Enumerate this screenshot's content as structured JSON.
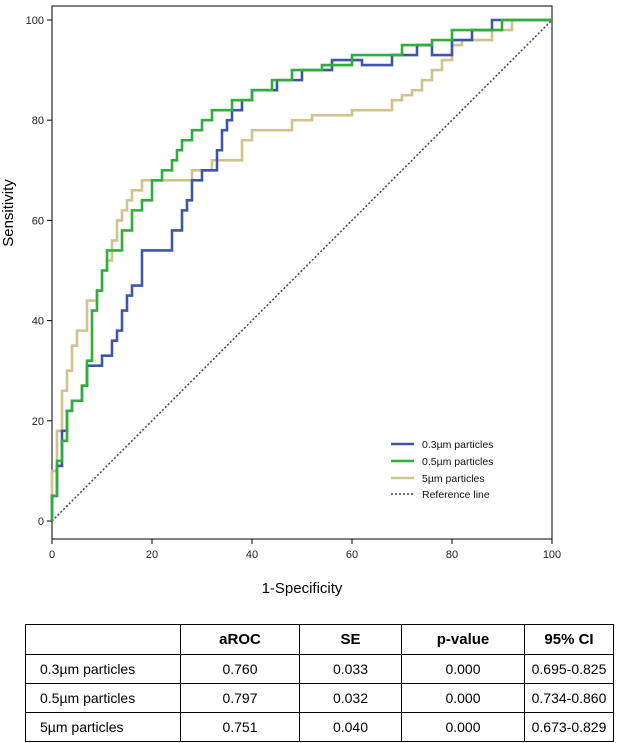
{
  "chart_data": {
    "type": "line",
    "xlabel": "1-Specificity",
    "ylabel": "Sensitivity",
    "xlim": [
      0,
      100
    ],
    "ylim": [
      0,
      100
    ],
    "x_ticks": [
      "0",
      "20",
      "40",
      "60",
      "80",
      "100"
    ],
    "y_ticks": [
      "0",
      "20",
      "40",
      "60",
      "80",
      "100"
    ],
    "legend_position": "bottom-right",
    "series": [
      {
        "name": "0.3µm particles",
        "color": "#3f55a6",
        "points": [
          [
            0,
            0
          ],
          [
            0,
            5
          ],
          [
            1,
            5
          ],
          [
            1,
            11
          ],
          [
            2,
            11
          ],
          [
            2,
            18
          ],
          [
            3,
            18
          ],
          [
            3,
            22
          ],
          [
            4,
            22
          ],
          [
            4,
            24
          ],
          [
            6,
            24
          ],
          [
            6,
            27
          ],
          [
            7,
            27
          ],
          [
            7,
            31
          ],
          [
            10,
            31
          ],
          [
            10,
            33
          ],
          [
            12,
            33
          ],
          [
            12,
            36
          ],
          [
            13,
            36
          ],
          [
            13,
            38
          ],
          [
            14,
            38
          ],
          [
            14,
            42
          ],
          [
            15,
            42
          ],
          [
            15,
            45
          ],
          [
            16,
            45
          ],
          [
            16,
            47
          ],
          [
            18,
            47
          ],
          [
            18,
            54
          ],
          [
            24,
            54
          ],
          [
            24,
            58
          ],
          [
            26,
            58
          ],
          [
            26,
            62
          ],
          [
            27,
            62
          ],
          [
            27,
            64
          ],
          [
            28,
            64
          ],
          [
            28,
            68
          ],
          [
            30,
            68
          ],
          [
            30,
            70
          ],
          [
            33,
            70
          ],
          [
            33,
            74
          ],
          [
            34,
            74
          ],
          [
            34,
            78
          ],
          [
            35,
            78
          ],
          [
            35,
            80
          ],
          [
            36,
            80
          ],
          [
            36,
            82
          ],
          [
            38,
            82
          ],
          [
            38,
            84
          ],
          [
            40,
            84
          ],
          [
            40,
            86
          ],
          [
            45,
            86
          ],
          [
            45,
            88
          ],
          [
            50,
            88
          ],
          [
            50,
            90
          ],
          [
            56,
            90
          ],
          [
            56,
            92
          ],
          [
            62,
            92
          ],
          [
            62,
            91
          ],
          [
            68,
            91
          ],
          [
            68,
            93
          ],
          [
            73,
            93
          ],
          [
            73,
            95
          ],
          [
            76,
            95
          ],
          [
            76,
            93
          ],
          [
            80,
            93
          ],
          [
            80,
            96
          ],
          [
            84,
            96
          ],
          [
            84,
            98
          ],
          [
            88,
            98
          ],
          [
            88,
            100
          ],
          [
            100,
            100
          ]
        ]
      },
      {
        "name": "0.5µm particles",
        "color": "#2fae3c",
        "points": [
          [
            0,
            0
          ],
          [
            0,
            5
          ],
          [
            1,
            5
          ],
          [
            1,
            12
          ],
          [
            2,
            12
          ],
          [
            2,
            16
          ],
          [
            3,
            16
          ],
          [
            3,
            22
          ],
          [
            4,
            22
          ],
          [
            4,
            24
          ],
          [
            6,
            24
          ],
          [
            6,
            27
          ],
          [
            7,
            27
          ],
          [
            7,
            32
          ],
          [
            8,
            32
          ],
          [
            8,
            42
          ],
          [
            9,
            42
          ],
          [
            9,
            46
          ],
          [
            10,
            46
          ],
          [
            10,
            50
          ],
          [
            11,
            50
          ],
          [
            11,
            54
          ],
          [
            14,
            54
          ],
          [
            14,
            58
          ],
          [
            16,
            58
          ],
          [
            16,
            62
          ],
          [
            18,
            62
          ],
          [
            18,
            64
          ],
          [
            20,
            64
          ],
          [
            20,
            68
          ],
          [
            22,
            68
          ],
          [
            22,
            70
          ],
          [
            24,
            70
          ],
          [
            24,
            72
          ],
          [
            25,
            72
          ],
          [
            25,
            74
          ],
          [
            26,
            74
          ],
          [
            26,
            76
          ],
          [
            28,
            76
          ],
          [
            28,
            78
          ],
          [
            30,
            78
          ],
          [
            30,
            80
          ],
          [
            32,
            80
          ],
          [
            32,
            82
          ],
          [
            36,
            82
          ],
          [
            36,
            84
          ],
          [
            40,
            84
          ],
          [
            40,
            86
          ],
          [
            44,
            86
          ],
          [
            44,
            88
          ],
          [
            48,
            88
          ],
          [
            48,
            90
          ],
          [
            54,
            90
          ],
          [
            54,
            91
          ],
          [
            60,
            91
          ],
          [
            60,
            93
          ],
          [
            70,
            93
          ],
          [
            70,
            95
          ],
          [
            76,
            95
          ],
          [
            76,
            96
          ],
          [
            80,
            96
          ],
          [
            80,
            98
          ],
          [
            90,
            98
          ],
          [
            90,
            100
          ],
          [
            100,
            100
          ]
        ]
      },
      {
        "name": "5µm particles",
        "color": "#cfc48f",
        "points": [
          [
            0,
            0
          ],
          [
            0,
            10
          ],
          [
            1,
            10
          ],
          [
            1,
            18
          ],
          [
            2,
            18
          ],
          [
            2,
            26
          ],
          [
            3,
            26
          ],
          [
            3,
            30
          ],
          [
            4,
            30
          ],
          [
            4,
            35
          ],
          [
            5,
            35
          ],
          [
            5,
            38
          ],
          [
            7,
            38
          ],
          [
            7,
            44
          ],
          [
            9,
            44
          ],
          [
            9,
            46
          ],
          [
            10,
            46
          ],
          [
            10,
            50
          ],
          [
            11,
            50
          ],
          [
            11,
            52
          ],
          [
            12,
            52
          ],
          [
            12,
            56
          ],
          [
            13,
            56
          ],
          [
            13,
            60
          ],
          [
            14,
            60
          ],
          [
            14,
            62
          ],
          [
            15,
            62
          ],
          [
            15,
            64
          ],
          [
            16,
            64
          ],
          [
            16,
            66
          ],
          [
            18,
            66
          ],
          [
            18,
            68
          ],
          [
            28,
            68
          ],
          [
            28,
            70
          ],
          [
            32,
            70
          ],
          [
            32,
            72
          ],
          [
            38,
            72
          ],
          [
            38,
            76
          ],
          [
            40,
            76
          ],
          [
            40,
            78
          ],
          [
            48,
            78
          ],
          [
            48,
            80
          ],
          [
            52,
            80
          ],
          [
            52,
            81
          ],
          [
            60,
            81
          ],
          [
            60,
            82
          ],
          [
            68,
            82
          ],
          [
            68,
            84
          ],
          [
            70,
            84
          ],
          [
            70,
            85
          ],
          [
            72,
            85
          ],
          [
            72,
            86
          ],
          [
            74,
            86
          ],
          [
            74,
            88
          ],
          [
            76,
            88
          ],
          [
            76,
            90
          ],
          [
            78,
            90
          ],
          [
            78,
            92
          ],
          [
            80,
            92
          ],
          [
            80,
            95
          ],
          [
            82,
            95
          ],
          [
            82,
            96
          ],
          [
            88,
            96
          ],
          [
            88,
            98
          ],
          [
            92,
            98
          ],
          [
            92,
            100
          ],
          [
            100,
            100
          ]
        ]
      },
      {
        "name": "Reference line",
        "color": "#444444",
        "points": [
          [
            0,
            0
          ],
          [
            100,
            100
          ]
        ]
      }
    ]
  },
  "table": {
    "headers": [
      "",
      "aROC",
      "SE",
      "p-value",
      "95% CI"
    ],
    "rows": [
      {
        "label": "0.3µm particles",
        "aroc": "0.760",
        "se": "0.033",
        "p": "0.000",
        "ci": "0.695-0.825"
      },
      {
        "label": "0.5µm particles",
        "aroc": "0.797",
        "se": "0.032",
        "p": "0.000",
        "ci": "0.734-0.860"
      },
      {
        "label": "5µm particles",
        "aroc": "0.751",
        "se": "0.040",
        "p": "0.000",
        "ci": "0.673-0.829"
      }
    ]
  }
}
